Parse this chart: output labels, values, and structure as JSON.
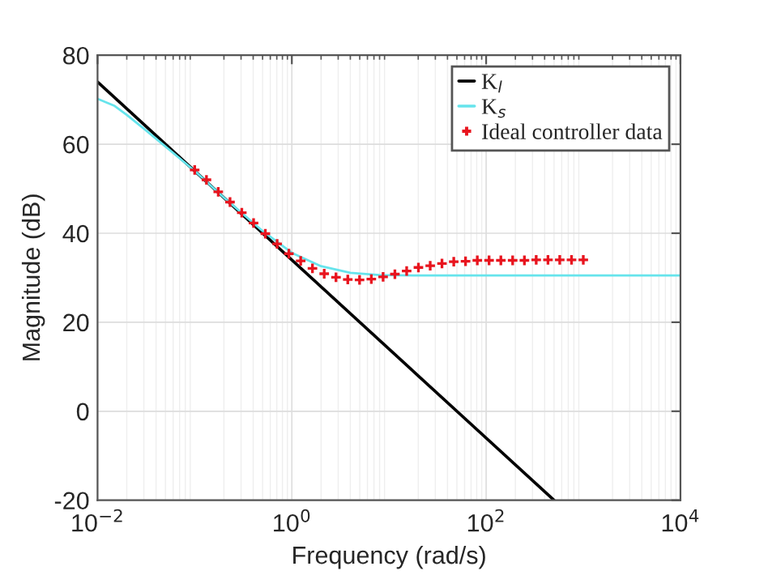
{
  "chart_data": {
    "type": "line",
    "xlabel": "Frequency (rad/s)",
    "ylabel": "Magnitude (dB)",
    "log": "x",
    "grid": true,
    "legend": "top right",
    "xlim": [
      0.01,
      10000
    ],
    "ylim": [
      -20,
      80
    ],
    "xticks": [
      {
        "value": 0.01,
        "label": "10$^{−2}$"
      },
      {
        "value": 1,
        "label": "10$^{0}$"
      },
      {
        "value": 100,
        "label": "10$^{2}$"
      },
      {
        "value": 10000,
        "label": "10$^{4}$"
      }
    ],
    "yticks": [
      -20,
      0,
      20,
      40,
      60,
      80
    ],
    "series": [
      {
        "name": "K$_{l}$",
        "color": "#000000",
        "x": [
          0.01,
          500
        ],
        "values": [
          74,
          -20
        ]
      },
      {
        "name": "K$_{s}$",
        "color": "#66e4ec",
        "x": [
          0.01,
          0.015,
          0.02,
          0.03,
          0.05,
          0.1,
          0.2,
          0.5,
          1,
          2,
          4,
          8,
          20,
          100,
          1000,
          10000
        ],
        "values": [
          70.2,
          68.6,
          66.6,
          63.5,
          59.5,
          54,
          48,
          40.5,
          35.6,
          32.6,
          31.1,
          30.6,
          30.5,
          30.5,
          30.5,
          30.5
        ]
      },
      {
        "name": "Ideal controller data",
        "type": "scatter",
        "marker": "cross",
        "color": "#e8141e",
        "x": [
          0.1,
          0.1322,
          0.1748,
          0.231,
          0.3054,
          0.4037,
          0.5337,
          0.7055,
          0.9326,
          1.233,
          1.63,
          2.154,
          2.848,
          3.765,
          4.977,
          6.579,
          8.697,
          11.5,
          15.2,
          20.09,
          26.56,
          35.11,
          46.42,
          61.36,
          81.11,
          107.2,
          141.7,
          187.4,
          247.7,
          327.5,
          432.9,
          572.2,
          756.5,
          1000
        ],
        "values": [
          54.2,
          52.0,
          49.3,
          47.0,
          44.6,
          42.3,
          39.9,
          37.6,
          35.4,
          33.8,
          32.1,
          30.9,
          30.1,
          29.6,
          29.5,
          29.7,
          30.2,
          30.8,
          31.5,
          32.3,
          32.7,
          33.2,
          33.6,
          33.7,
          33.9,
          33.9,
          33.9,
          33.9,
          33.9,
          34.0,
          34.0,
          34.0,
          34.0,
          34.0
        ]
      }
    ]
  }
}
